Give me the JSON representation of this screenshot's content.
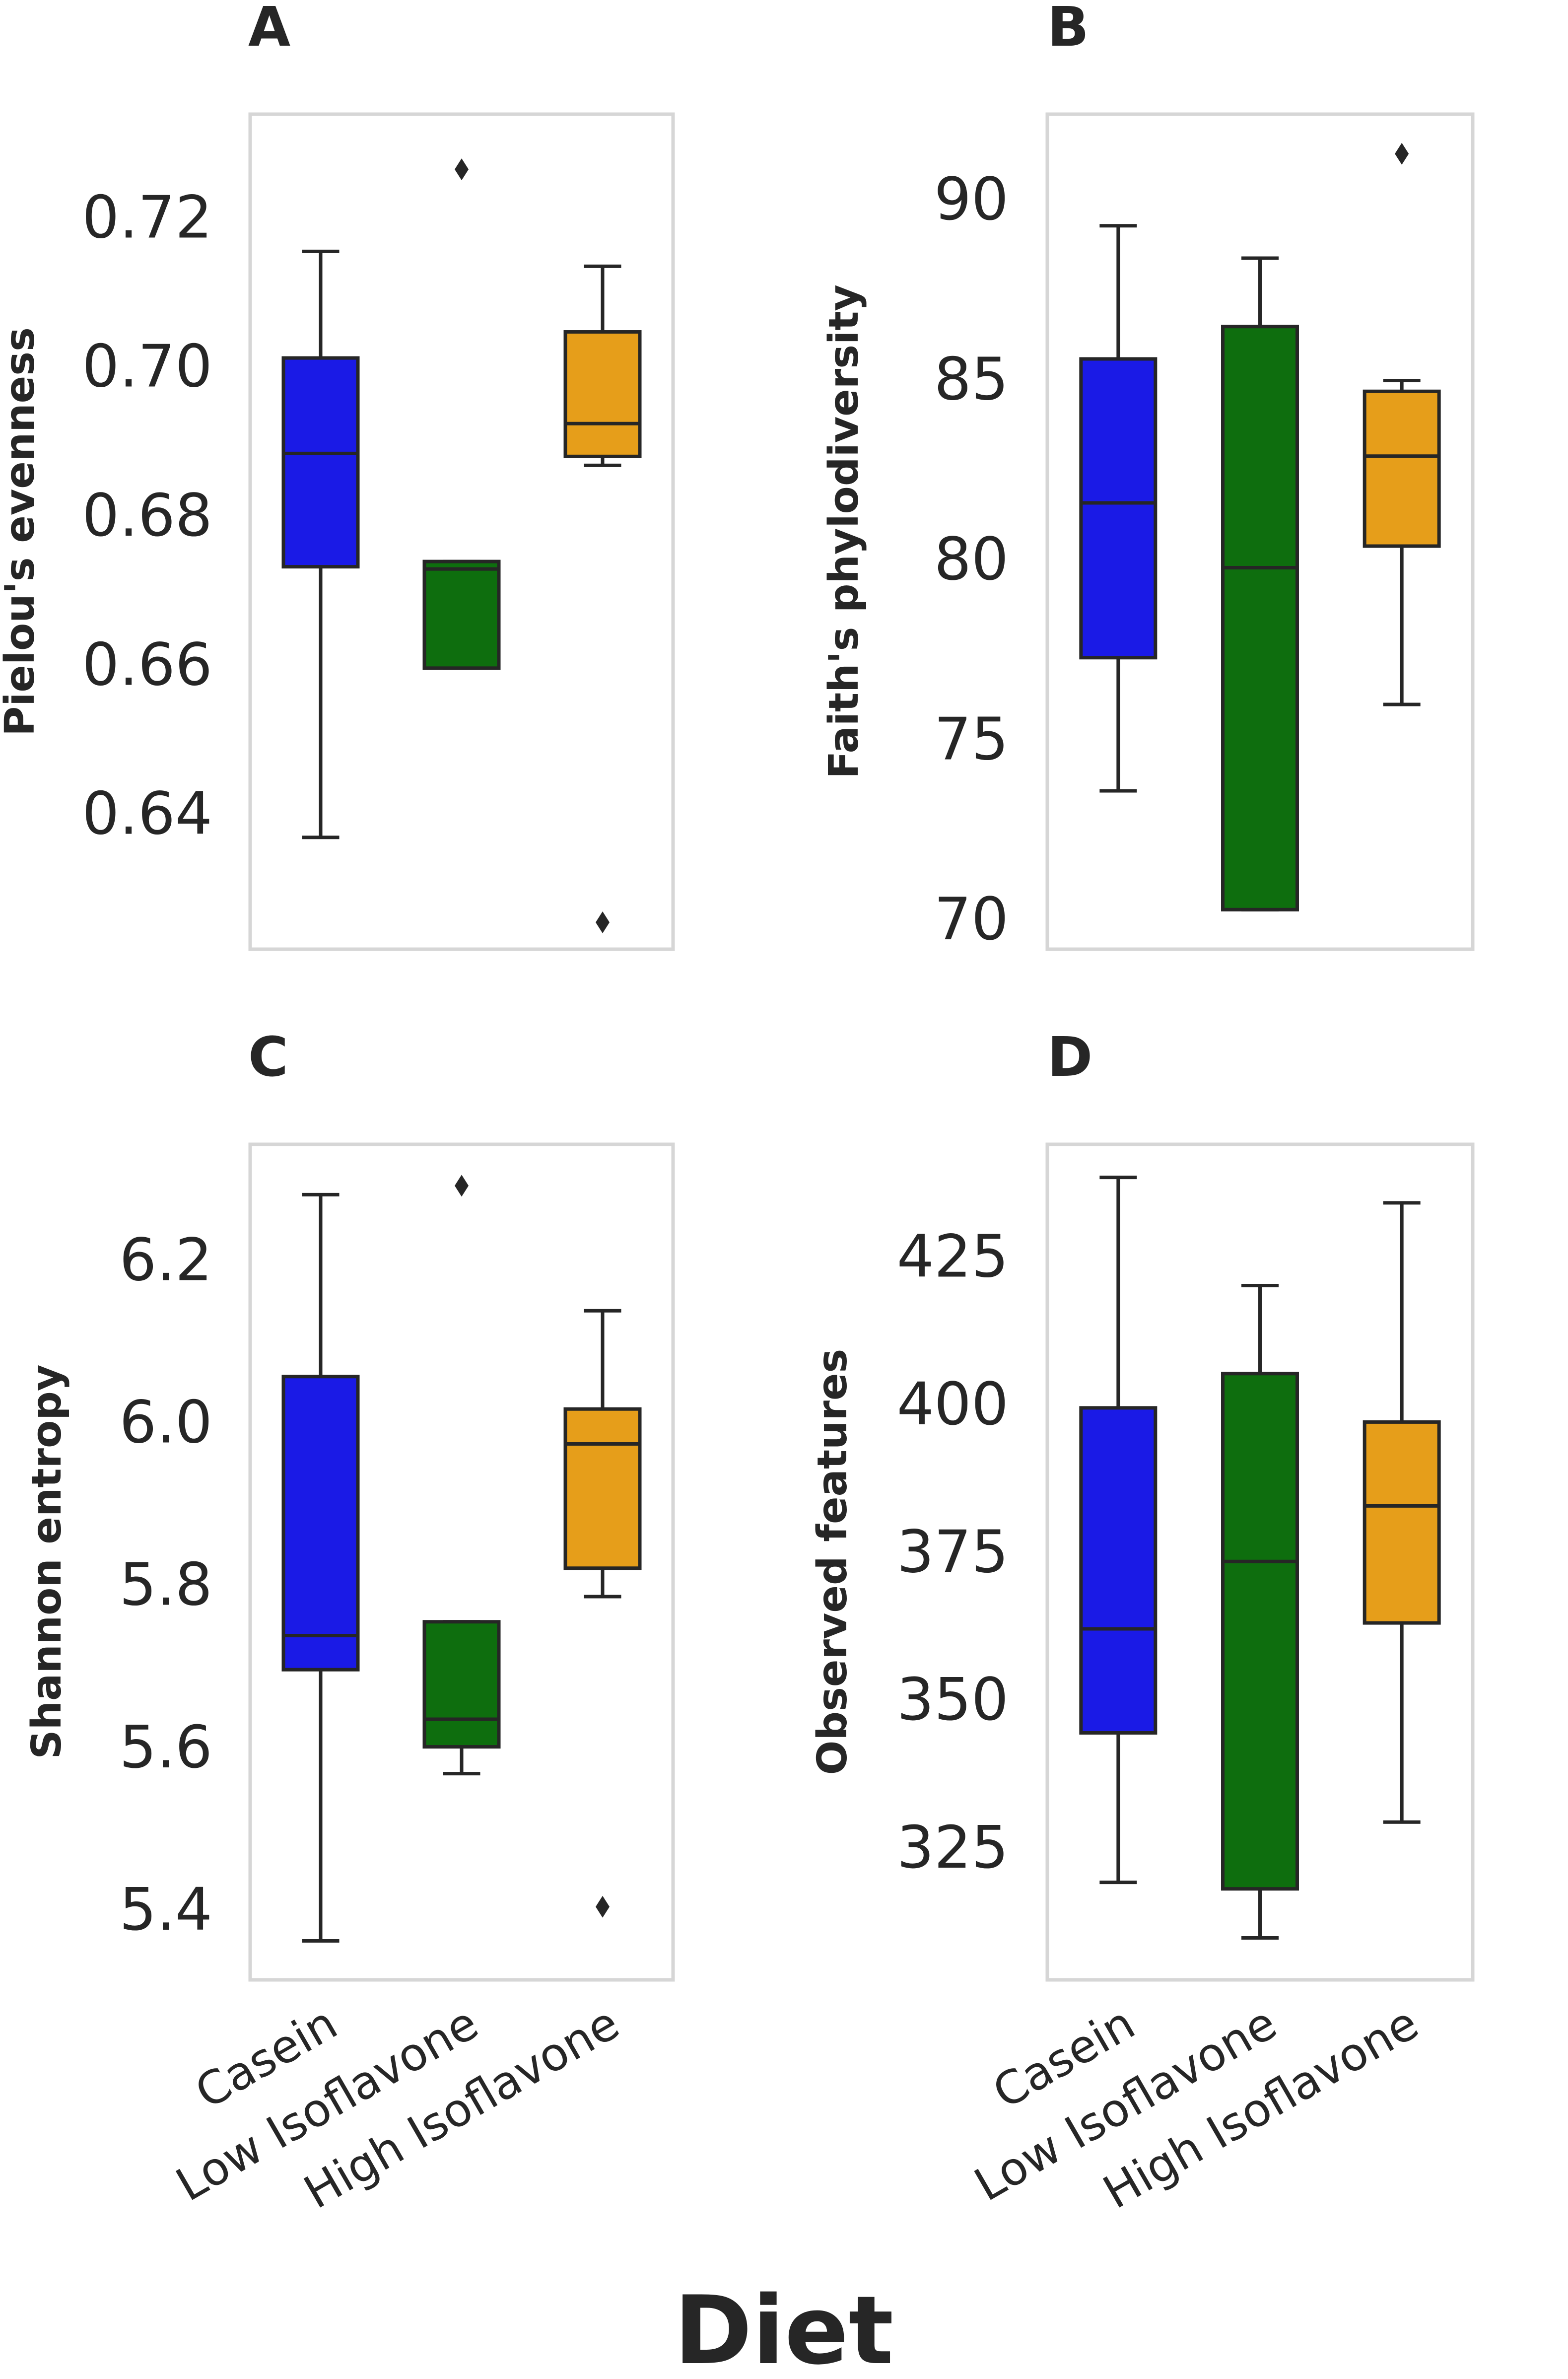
{
  "figure": {
    "xlabel": "Diet",
    "categories": [
      "Casein",
      "Low Isoflavone",
      "High Isoflavone"
    ],
    "colors": {
      "Casein": "#1a1ae6",
      "Low Isoflavone": "#0e6e0e",
      "High Isoflavone": "#e69e1a"
    }
  },
  "chart_data": [
    {
      "panel_label": "A",
      "type": "box",
      "ylabel": "Pielou's evenness",
      "ylim": [
        0.622,
        0.734
      ],
      "yticks": [
        0.64,
        0.66,
        0.68,
        0.7,
        0.72
      ],
      "ytick_labels": [
        "0.64",
        "0.66",
        "0.68",
        "0.70",
        "0.72"
      ],
      "categories": [
        "Casein",
        "Low Isoflavone",
        "High Isoflavone"
      ],
      "boxes": [
        {
          "whisker_low": 0.637,
          "q1": 0.6733,
          "median": 0.6885,
          "q3": 0.7013,
          "whisker_high": 0.7156,
          "outliers": []
        },
        {
          "whisker_low": 0.6597,
          "q1": 0.6597,
          "median": 0.673,
          "q3": 0.674,
          "whisker_high": 0.674,
          "outliers": [
            0.7266
          ]
        },
        {
          "whisker_low": 0.6869,
          "q1": 0.6881,
          "median": 0.6925,
          "q3": 0.7048,
          "whisker_high": 0.7136,
          "outliers": [
            0.6256
          ]
        }
      ]
    },
    {
      "panel_label": "B",
      "type": "box",
      "ylabel": "Faith's phylodiversity",
      "ylim": [
        69.2,
        92.4
      ],
      "yticks": [
        70,
        75,
        80,
        85,
        90
      ],
      "ytick_labels": [
        "70",
        "75",
        "80",
        "85",
        "90"
      ],
      "categories": [
        "Casein",
        "Low Isoflavone",
        "High Isoflavone"
      ],
      "boxes": [
        {
          "whisker_low": 73.6,
          "q1": 77.3,
          "median": 81.6,
          "q3": 85.6,
          "whisker_high": 89.3,
          "outliers": []
        },
        {
          "whisker_low": 70.3,
          "q1": 70.3,
          "median": 79.8,
          "q3": 86.5,
          "whisker_high": 88.4,
          "outliers": []
        },
        {
          "whisker_low": 76.0,
          "q1": 80.4,
          "median": 82.9,
          "q3": 84.7,
          "whisker_high": 85.0,
          "outliers": [
            91.3
          ]
        }
      ]
    },
    {
      "panel_label": "C",
      "type": "box",
      "ylabel": "Shannon entropy",
      "ylim": [
        5.315,
        6.344
      ],
      "yticks": [
        5.4,
        5.6,
        5.8,
        6.0,
        6.2
      ],
      "ytick_labels": [
        "5.4",
        "5.6",
        "5.8",
        "6.0",
        "6.2"
      ],
      "categories": [
        "Casein",
        "Low Isoflavone",
        "High Isoflavone"
      ],
      "boxes": [
        {
          "whisker_low": 5.363,
          "q1": 5.697,
          "median": 5.739,
          "q3": 6.058,
          "whisker_high": 6.282,
          "outliers": []
        },
        {
          "whisker_low": 5.569,
          "q1": 5.602,
          "median": 5.636,
          "q3": 5.756,
          "whisker_high": 5.756,
          "outliers": [
            6.293
          ]
        },
        {
          "whisker_low": 5.787,
          "q1": 5.822,
          "median": 5.975,
          "q3": 6.018,
          "whisker_high": 6.139,
          "outliers": [
            5.405
          ]
        }
      ]
    },
    {
      "panel_label": "D",
      "type": "box",
      "ylabel": "Observed features",
      "ylim": [
        302.8,
        444.2
      ],
      "yticks": [
        325,
        350,
        375,
        400,
        425
      ],
      "ytick_labels": [
        "325",
        "350",
        "375",
        "400",
        "425"
      ],
      "categories": [
        "Casein",
        "Low Isoflavone",
        "High Isoflavone"
      ],
      "boxes": [
        {
          "whisker_low": 319.3,
          "q1": 344.6,
          "median": 362.2,
          "q3": 399.6,
          "whisker_high": 438.6,
          "outliers": []
        },
        {
          "whisker_low": 309.9,
          "q1": 318.2,
          "median": 373.6,
          "q3": 405.4,
          "whisker_high": 420.3,
          "outliers": []
        },
        {
          "whisker_low": 329.5,
          "q1": 363.2,
          "median": 383.0,
          "q3": 397.2,
          "whisker_high": 434.3,
          "outliers": []
        }
      ]
    }
  ]
}
